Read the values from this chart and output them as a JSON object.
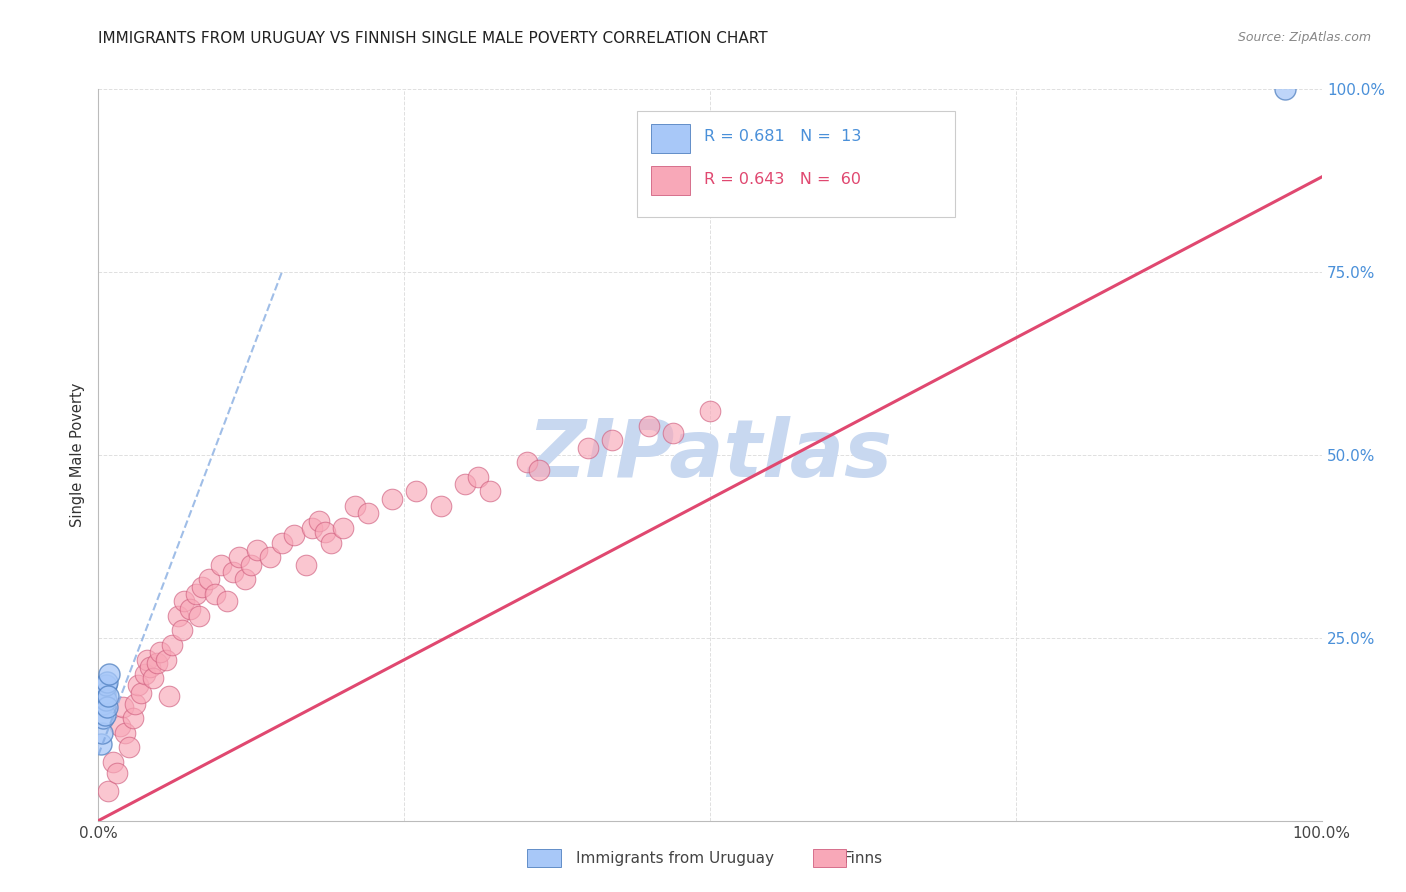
{
  "title": "IMMIGRANTS FROM URUGUAY VS FINNISH SINGLE MALE POVERTY CORRELATION CHART",
  "source": "Source: ZipAtlas.com",
  "ylabel": "Single Male Poverty",
  "xlim": [
    0,
    1.0
  ],
  "ylim": [
    0,
    1.0
  ],
  "background_color": "#ffffff",
  "grid_color": "#e0e0e0",
  "watermark_text": "ZIPatlas",
  "watermark_color": "#c8d8f0",
  "legend_R1": "R = 0.681",
  "legend_N1": "N =  13",
  "legend_R2": "R = 0.643",
  "legend_N2": "N =  60",
  "legend_color1": "#a8c8f8",
  "legend_color2": "#f8a8b8",
  "scatter_color_uruguay": "#a8c8f8",
  "scatter_color_finns": "#f8a8b8",
  "scatter_edge_uruguay": "#5080c0",
  "scatter_edge_finns": "#d06080",
  "trendline_color_uruguay": "#80a8e0",
  "trendline_color_finns": "#e04870",
  "legend_label1": "Immigrants from Uruguay",
  "legend_label2": "Finns",
  "uruguay_x": [
    0.002,
    0.003,
    0.004,
    0.004,
    0.005,
    0.005,
    0.006,
    0.006,
    0.007,
    0.007,
    0.008,
    0.009,
    0.97
  ],
  "uruguay_y": [
    0.105,
    0.12,
    0.14,
    0.16,
    0.145,
    0.175,
    0.165,
    0.185,
    0.155,
    0.19,
    0.17,
    0.2,
    1.0
  ],
  "finns_x": [
    0.008,
    0.012,
    0.015,
    0.018,
    0.02,
    0.022,
    0.025,
    0.028,
    0.03,
    0.032,
    0.035,
    0.038,
    0.04,
    0.042,
    0.045,
    0.048,
    0.05,
    0.055,
    0.058,
    0.06,
    0.065,
    0.068,
    0.07,
    0.075,
    0.08,
    0.082,
    0.085,
    0.09,
    0.095,
    0.1,
    0.105,
    0.11,
    0.115,
    0.12,
    0.125,
    0.13,
    0.14,
    0.15,
    0.16,
    0.17,
    0.175,
    0.18,
    0.185,
    0.19,
    0.2,
    0.21,
    0.22,
    0.24,
    0.26,
    0.28,
    0.3,
    0.31,
    0.32,
    0.35,
    0.36,
    0.4,
    0.42,
    0.45,
    0.47,
    0.5
  ],
  "finns_y": [
    0.04,
    0.08,
    0.065,
    0.13,
    0.155,
    0.12,
    0.1,
    0.14,
    0.16,
    0.185,
    0.175,
    0.2,
    0.22,
    0.21,
    0.195,
    0.215,
    0.23,
    0.22,
    0.17,
    0.24,
    0.28,
    0.26,
    0.3,
    0.29,
    0.31,
    0.28,
    0.32,
    0.33,
    0.31,
    0.35,
    0.3,
    0.34,
    0.36,
    0.33,
    0.35,
    0.37,
    0.36,
    0.38,
    0.39,
    0.35,
    0.4,
    0.41,
    0.395,
    0.38,
    0.4,
    0.43,
    0.42,
    0.44,
    0.45,
    0.43,
    0.46,
    0.47,
    0.45,
    0.49,
    0.48,
    0.51,
    0.52,
    0.54,
    0.53,
    0.56
  ],
  "finns_trendline_x0": 0.0,
  "finns_trendline_y0": 0.0,
  "finns_trendline_x1": 1.0,
  "finns_trendline_y1": 0.88,
  "uruguay_trendline_x0": 0.0,
  "uruguay_trendline_y0": 0.09,
  "uruguay_trendline_x1": 0.15,
  "uruguay_trendline_y1": 0.75
}
